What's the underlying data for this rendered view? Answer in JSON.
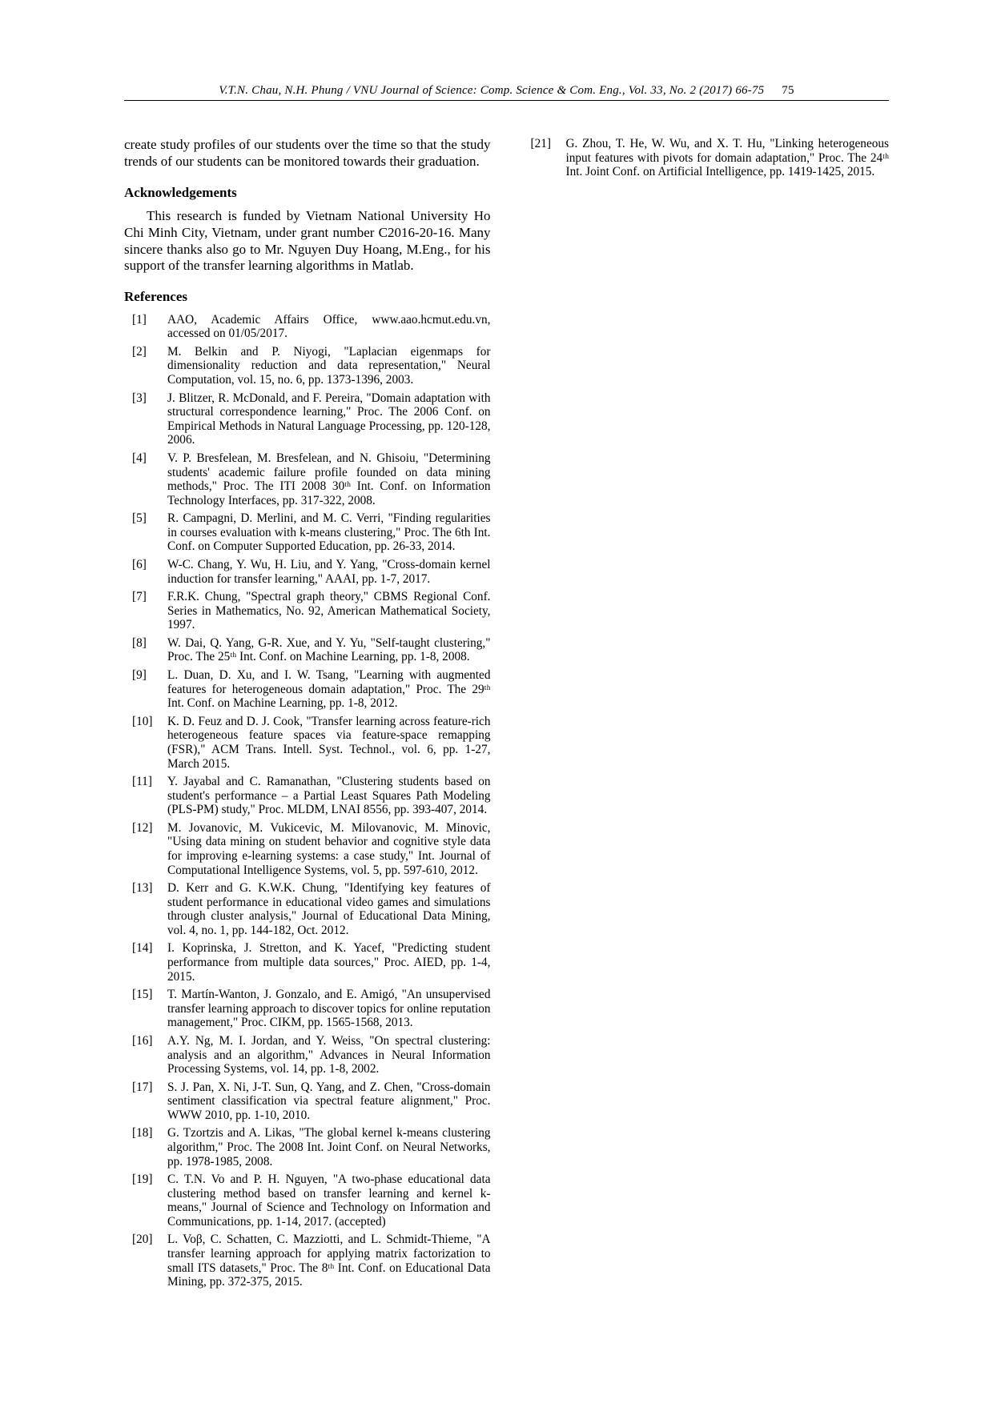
{
  "header": {
    "citation": "V.T.N. Chau, N.H. Phung / VNU Journal of Science: Comp. Science & Com. Eng., Vol. 33, No. 2 (2017) 66-75",
    "page_number": "75"
  },
  "body_paragraph": "create study profiles of our students over the time so that the study trends of our students can be monitored towards their graduation.",
  "acknowledgements": {
    "title": "Acknowledgements",
    "text": "This research is funded by Vietnam National University Ho Chi Minh City, Vietnam, under grant number C2016-20-16. Many sincere thanks also go to Mr. Nguyen Duy Hoang, M.Eng., for his support of the transfer learning algorithms in Matlab."
  },
  "references": {
    "title": "References",
    "items": [
      {
        "num": "[1]",
        "text": "AAO, Academic Affairs Office, www.aao.hcmut.edu.vn, accessed on 01/05/2017."
      },
      {
        "num": "[2]",
        "text": "M. Belkin and P. Niyogi, \"Laplacian eigenmaps for dimensionality reduction and data representation,\" Neural Computation, vol. 15, no. 6, pp. 1373-1396, 2003."
      },
      {
        "num": "[3]",
        "text": "J. Blitzer, R. McDonald, and F. Pereira, \"Domain adaptation with structural correspondence learning,\" Proc. The 2006 Conf. on Empirical Methods in Natural Language Processing, pp. 120-128, 2006."
      },
      {
        "num": "[4]",
        "text": "V. P. Bresfelean, M. Bresfelean, and N. Ghisoiu, \"Determining students' academic failure profile founded on data mining methods,\" Proc. The ITI 2008 30ᵗʰ Int. Conf. on Information Technology Interfaces, pp. 317-322, 2008."
      },
      {
        "num": "[5]",
        "text": "R. Campagni, D. Merlini, and M. C. Verri, \"Finding regularities in courses evaluation with k-means clustering,\" Proc. The 6th Int. Conf. on Computer Supported Education, pp. 26-33, 2014."
      },
      {
        "num": "[6]",
        "text": "W-C. Chang, Y. Wu, H. Liu, and Y. Yang, \"Cross-domain kernel induction for transfer learning,\" AAAI, pp. 1-7, 2017."
      },
      {
        "num": "[7]",
        "text": "F.R.K. Chung, \"Spectral graph theory,\" CBMS Regional Conf. Series in Mathematics, No. 92, American Mathematical Society, 1997."
      },
      {
        "num": "[8]",
        "text": "W. Dai, Q. Yang, G-R. Xue, and Y. Yu, \"Self-taught clustering,\" Proc. The 25ᵗʰ Int. Conf. on Machine Learning, pp. 1-8, 2008."
      },
      {
        "num": "[9]",
        "text": "L. Duan, D. Xu, and I. W. Tsang, \"Learning with augmented features for heterogeneous domain adaptation,\" Proc. The 29ᵗʰ Int. Conf. on Machine Learning, pp. 1-8, 2012."
      },
      {
        "num": "[10]",
        "text": "K. D. Feuz and D. J. Cook, \"Transfer learning across feature-rich heterogeneous feature spaces via feature-space remapping (FSR),\" ACM Trans. Intell. Syst. Technol., vol. 6, pp. 1-27, March 2015."
      },
      {
        "num": "[11]",
        "text": "Y. Jayabal and C. Ramanathan, \"Clustering students based on student's performance – a Partial Least Squares Path Modeling (PLS-PM) study,\" Proc. MLDM, LNAI 8556, pp. 393-407, 2014."
      },
      {
        "num": "[12]",
        "text": "M. Jovanovic, M. Vukicevic, M. Milovanovic, M. Minovic, \"Using data mining on student behavior and cognitive style data for improving e-learning systems: a case study,\" Int. Journal of Computational Intelligence Systems, vol. 5, pp. 597-610, 2012."
      },
      {
        "num": "[13]",
        "text": "D. Kerr and G. K.W.K. Chung, \"Identifying key features of student performance in educational video games and simulations through cluster analysis,\" Journal of Educational Data Mining, vol. 4, no. 1, pp. 144-182, Oct. 2012."
      },
      {
        "num": "[14]",
        "text": "I. Koprinska, J. Stretton, and K. Yacef, \"Predicting student performance from multiple data sources,\" Proc. AIED, pp. 1-4, 2015."
      },
      {
        "num": "[15]",
        "text": "T. Martín-Wanton, J. Gonzalo, and E. Amigó, \"An unsupervised transfer learning approach to discover topics for online reputation management,\" Proc. CIKM, pp. 1565-1568, 2013."
      },
      {
        "num": "[16]",
        "text": "A.Y. Ng, M. I. Jordan, and Y. Weiss, \"On spectral clustering: analysis and an algorithm,\" Advances in Neural Information Processing Systems, vol. 14, pp. 1-8, 2002."
      },
      {
        "num": "[17]",
        "text": "S. J. Pan, X. Ni, J-T. Sun, Q. Yang, and Z. Chen, \"Cross-domain sentiment classification via spectral feature alignment,\" Proc. WWW 2010, pp. 1-10, 2010."
      },
      {
        "num": "[18]",
        "text": "G. Tzortzis and A. Likas, \"The global kernel k-means clustering algorithm,\" Proc. The 2008 Int. Joint Conf. on Neural Networks, pp. 1978-1985, 2008."
      },
      {
        "num": "[19]",
        "text": "C. T.N. Vo and P. H. Nguyen, \"A two-phase educational data clustering method based on transfer learning and kernel k-means,\" Journal of Science and Technology on Information and Communications, pp. 1-14, 2017. (accepted)"
      },
      {
        "num": "[20]",
        "text": "L. Voβ, C. Schatten, C. Mazziotti, and L. Schmidt-Thieme, \"A transfer learning approach for applying matrix factorization to small ITS datasets,\" Proc. The 8ᵗʰ Int. Conf. on Educational Data Mining, pp. 372-375, 2015."
      },
      {
        "num": "[21]",
        "text": "G. Zhou, T. He, W. Wu, and X. T. Hu, \"Linking heterogeneous input features with pivots for domain adaptation,\" Proc. The 24ᵗʰ Int. Joint Conf. on Artificial Intelligence, pp. 1419-1425, 2015."
      }
    ]
  }
}
